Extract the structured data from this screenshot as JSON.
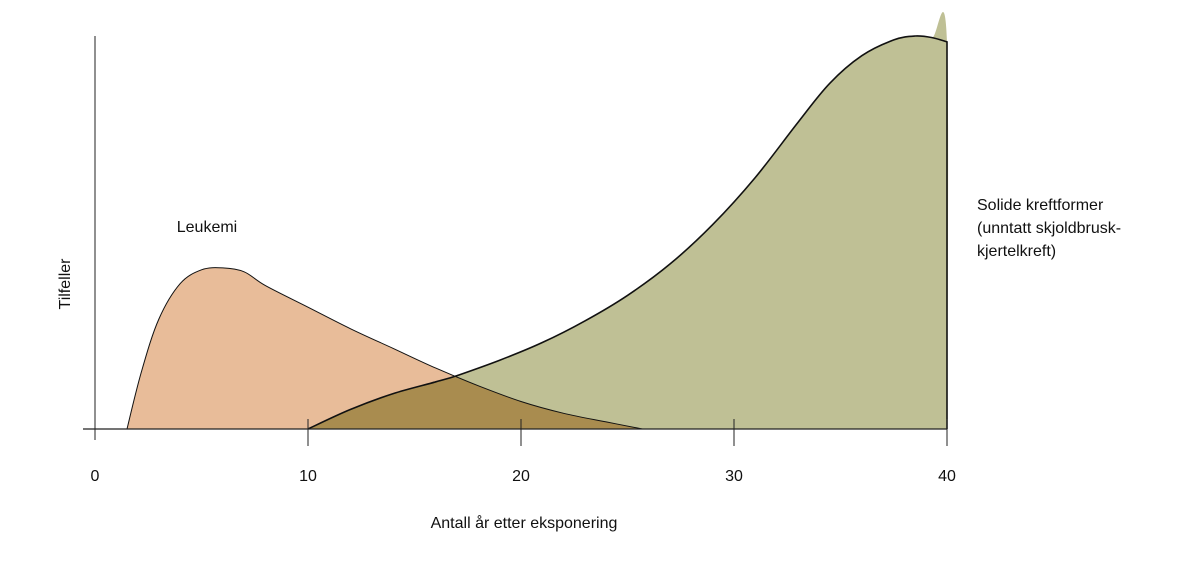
{
  "chart_data": {
    "type": "area",
    "xlabel": "Antall år etter eksponering",
    "ylabel": "Tilfeller",
    "xlim": [
      0,
      40
    ],
    "ylim": [
      0,
      100
    ],
    "x_ticks": [
      0,
      10,
      20,
      30,
      40
    ],
    "y_ticks_shown": false,
    "grid": false,
    "series": [
      {
        "name": "Leukemi",
        "label_lines": [
          "Leukemi"
        ],
        "color": "#e8bc99",
        "points": [
          [
            1.5,
            0
          ],
          [
            2.2,
            15
          ],
          [
            3,
            28
          ],
          [
            4,
            37
          ],
          [
            5,
            40.5
          ],
          [
            6,
            41
          ],
          [
            7,
            40
          ],
          [
            8,
            36.5
          ],
          [
            10,
            31
          ],
          [
            12,
            25.5
          ],
          [
            14,
            20.5
          ],
          [
            16,
            15.5
          ],
          [
            18,
            11
          ],
          [
            20,
            7
          ],
          [
            22,
            4
          ],
          [
            24,
            1.8
          ],
          [
            25.7,
            0
          ]
        ]
      },
      {
        "name": "Solide kreftformer (unntatt skjoldbrusk-kjertelkreft)",
        "label_lines": [
          "Solide kreftformer",
          "(unntatt skjoldbrusk-",
          "kjertelkreft)"
        ],
        "color": "#bfc095",
        "points": [
          [
            10,
            0
          ],
          [
            12,
            5
          ],
          [
            14,
            9
          ],
          [
            16,
            12
          ],
          [
            17,
            13.6
          ],
          [
            19,
            17.5
          ],
          [
            21,
            22
          ],
          [
            23,
            27.5
          ],
          [
            25,
            34
          ],
          [
            27,
            42
          ],
          [
            29,
            52
          ],
          [
            31,
            64
          ],
          [
            33,
            78
          ],
          [
            34.5,
            88
          ],
          [
            36,
            95
          ],
          [
            37.5,
            99
          ],
          [
            38.5,
            100
          ],
          [
            39.3,
            99.6
          ],
          [
            40,
            98.5
          ],
          [
            40,
            0
          ]
        ]
      }
    ],
    "overlap_color": "#a98c4f"
  }
}
